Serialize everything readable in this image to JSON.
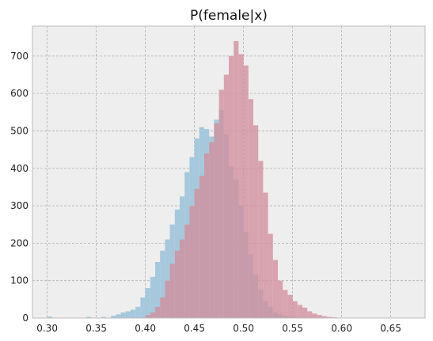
{
  "chart_data": {
    "type": "bar",
    "title": "P(female|x)",
    "xlabel": "",
    "ylabel": "",
    "xlim": [
      0.285,
      0.685
    ],
    "ylim": [
      0,
      780
    ],
    "grid": true,
    "x_ticks": [
      "0.30",
      "0.35",
      "0.40",
      "0.45",
      "0.50",
      "0.55",
      "0.60",
      "0.65"
    ],
    "y_ticks": [
      "0",
      "100",
      "200",
      "300",
      "400",
      "500",
      "600",
      "700"
    ],
    "bin_width": 0.005,
    "series": [
      {
        "color": "#a6c8dc",
        "bins": [
          [
            0.3,
            4
          ],
          [
            0.34,
            3
          ],
          [
            0.355,
            3
          ],
          [
            0.365,
            6
          ],
          [
            0.37,
            10
          ],
          [
            0.375,
            15
          ],
          [
            0.38,
            18
          ],
          [
            0.385,
            22
          ],
          [
            0.39,
            30
          ],
          [
            0.395,
            55
          ],
          [
            0.4,
            80
          ],
          [
            0.405,
            110
          ],
          [
            0.41,
            150
          ],
          [
            0.415,
            180
          ],
          [
            0.42,
            210
          ],
          [
            0.425,
            250
          ],
          [
            0.43,
            290
          ],
          [
            0.435,
            325
          ],
          [
            0.44,
            390
          ],
          [
            0.445,
            430
          ],
          [
            0.45,
            480
          ],
          [
            0.455,
            510
          ],
          [
            0.46,
            505
          ],
          [
            0.465,
            485
          ],
          [
            0.47,
            530
          ],
          [
            0.475,
            555
          ],
          [
            0.48,
            490
          ],
          [
            0.485,
            405
          ],
          [
            0.49,
            370
          ],
          [
            0.495,
            300
          ],
          [
            0.5,
            230
          ],
          [
            0.505,
            170
          ],
          [
            0.51,
            115
          ],
          [
            0.515,
            75
          ],
          [
            0.52,
            45
          ],
          [
            0.525,
            30
          ],
          [
            0.53,
            15
          ],
          [
            0.535,
            10
          ],
          [
            0.54,
            6
          ],
          [
            0.545,
            4
          ],
          [
            0.55,
            3
          ]
        ]
      },
      {
        "color": "#d28e9c",
        "bins": [
          [
            0.4,
            8
          ],
          [
            0.405,
            15
          ],
          [
            0.41,
            30
          ],
          [
            0.415,
            55
          ],
          [
            0.42,
            100
          ],
          [
            0.425,
            145
          ],
          [
            0.43,
            180
          ],
          [
            0.435,
            210
          ],
          [
            0.44,
            250
          ],
          [
            0.445,
            300
          ],
          [
            0.45,
            345
          ],
          [
            0.455,
            380
          ],
          [
            0.46,
            440
          ],
          [
            0.465,
            470
          ],
          [
            0.47,
            520
          ],
          [
            0.475,
            610
          ],
          [
            0.48,
            650
          ],
          [
            0.485,
            700
          ],
          [
            0.49,
            740
          ],
          [
            0.495,
            705
          ],
          [
            0.5,
            675
          ],
          [
            0.505,
            585
          ],
          [
            0.51,
            515
          ],
          [
            0.515,
            420
          ],
          [
            0.52,
            335
          ],
          [
            0.525,
            225
          ],
          [
            0.53,
            155
          ],
          [
            0.535,
            100
          ],
          [
            0.54,
            75
          ],
          [
            0.545,
            62
          ],
          [
            0.55,
            45
          ],
          [
            0.555,
            35
          ],
          [
            0.56,
            28
          ],
          [
            0.565,
            18
          ],
          [
            0.57,
            12
          ],
          [
            0.575,
            8
          ],
          [
            0.58,
            5
          ],
          [
            0.585,
            3
          ],
          [
            0.59,
            2
          ]
        ]
      }
    ]
  }
}
